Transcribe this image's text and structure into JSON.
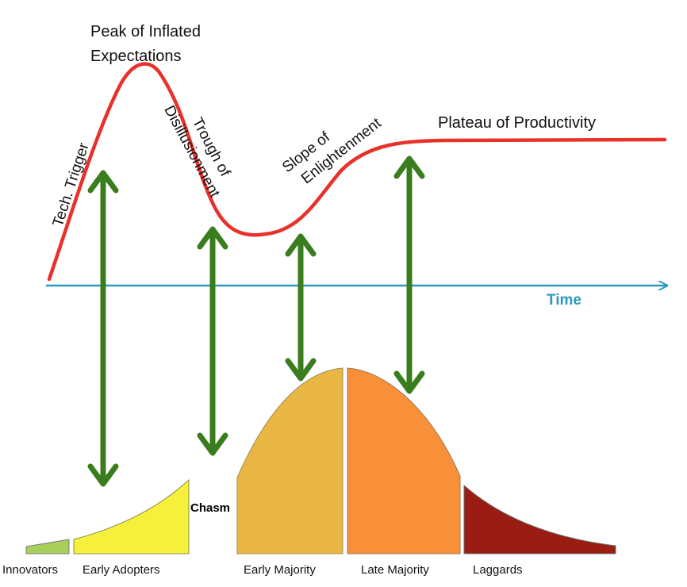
{
  "hype_cycle": {
    "peak": [
      "Peak of Inflated",
      "Expectations"
    ],
    "tech_trigger": "Tech. Trigger",
    "trough": [
      "Trough of",
      "Disillusionment"
    ],
    "slope": [
      "Slope of",
      "Enlightenment"
    ],
    "plateau": "Plateau of Productivity",
    "time_axis": "Time"
  },
  "adoption": {
    "innovators": "Innovators",
    "early_adopters": "Early Adopters",
    "chasm": "Chasm",
    "early_majority": "Early Majority",
    "late_majority": "Late Majority",
    "laggards": "Laggards"
  },
  "colors": {
    "hype_curve": "#e8312a",
    "time_axis": "#2a9bc0",
    "arrows": "#3a7d1e",
    "innovators": "#a8cf5a",
    "early_adopters": "#f7f03a",
    "early_majority": "#ebb744",
    "late_majority": "#f8903a",
    "laggards": "#9a1c12"
  }
}
